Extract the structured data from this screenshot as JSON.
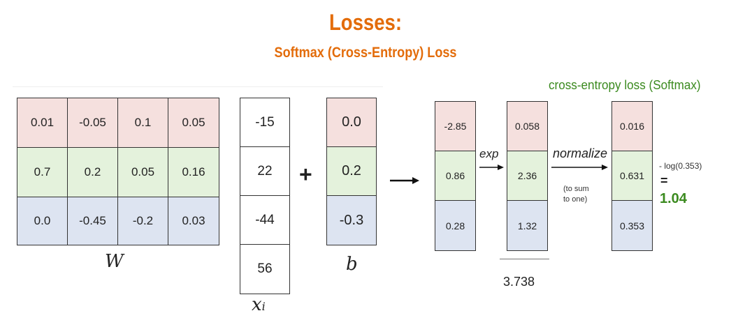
{
  "header": {
    "title": "Losses:",
    "subtitle": "Softmax (Cross-Entropy) Loss"
  },
  "weights": {
    "label": "W",
    "rows": [
      [
        "0.01",
        "-0.05",
        "0.1",
        "0.05"
      ],
      [
        "0.7",
        "0.2",
        "0.05",
        "0.16"
      ],
      [
        "0.0",
        "-0.45",
        "-0.2",
        "0.03"
      ]
    ]
  },
  "input": {
    "label": "x",
    "sub": "i",
    "values": [
      "-15",
      "22",
      "-44",
      "56"
    ]
  },
  "bias": {
    "label": "b",
    "values": [
      "0.0",
      "0.2",
      "-0.3"
    ]
  },
  "operators": {
    "plus": "+"
  },
  "scores": {
    "values": [
      "-2.85",
      "0.86",
      "0.28"
    ]
  },
  "exp_step": {
    "label": "exp",
    "values": [
      "0.058",
      "2.36",
      "1.32"
    ],
    "sum": "3.738"
  },
  "normalize_step": {
    "label": "normalize",
    "note_line1": "(to sum",
    "note_line2": "to one)",
    "values": [
      "0.016",
      "0.631",
      "0.353"
    ]
  },
  "loss": {
    "title": "cross-entropy loss (Softmax)",
    "expression": "- log(0.353)",
    "equals": "=",
    "value": "1.04"
  },
  "colors": {
    "title": "#e36c0a",
    "loss_green": "#3b8a1f",
    "row_red": "#f5e0de",
    "row_green": "#e4f2dc",
    "row_blue": "#dde4f1"
  }
}
